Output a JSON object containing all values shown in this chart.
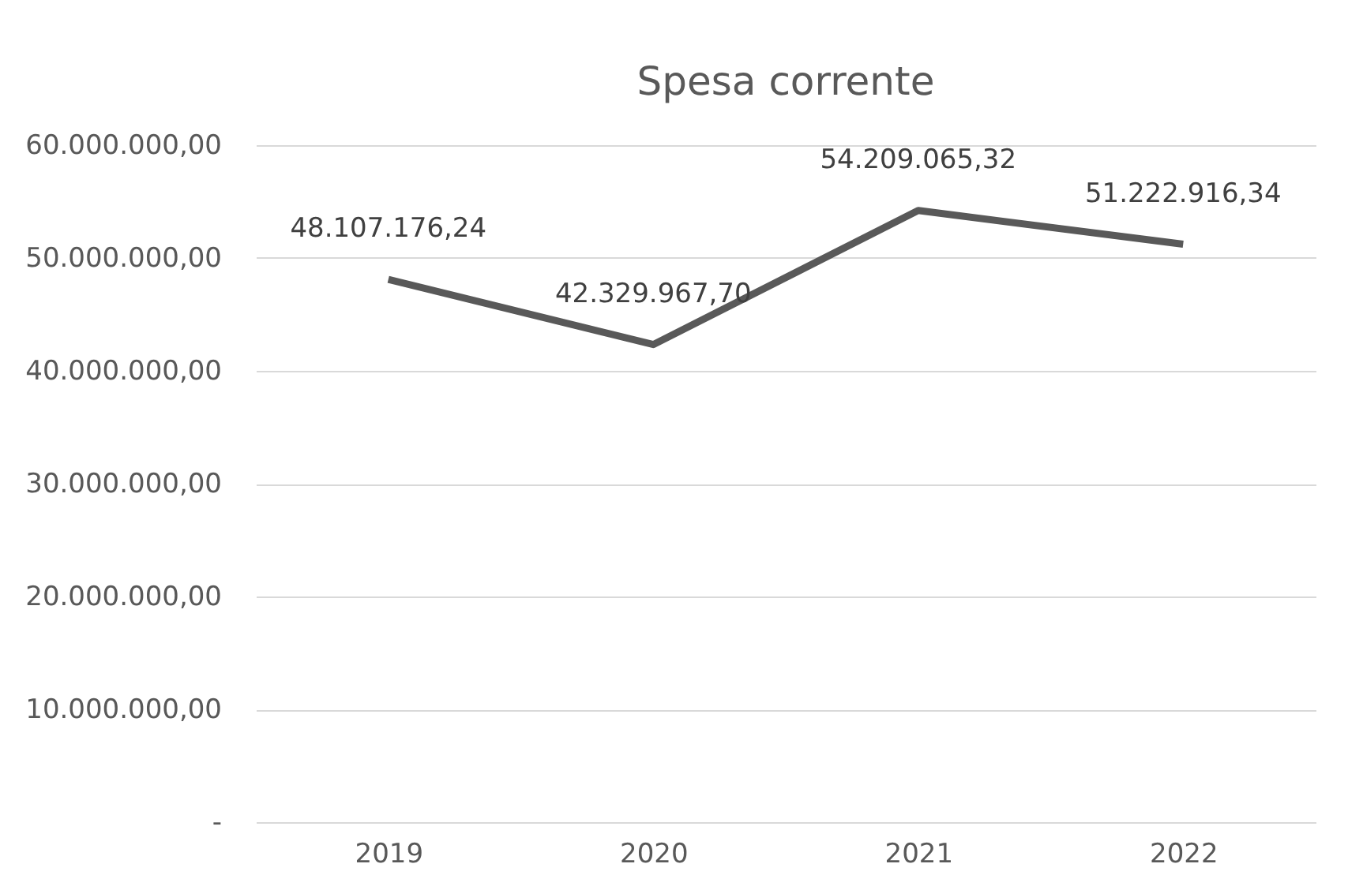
{
  "chart_data": {
    "type": "line",
    "title": "Spesa corrente",
    "categories": [
      "2019",
      "2020",
      "2021",
      "2022"
    ],
    "series": [
      {
        "color": "#595959",
        "values": [
          48107176.24,
          42329967.7,
          54209065.32,
          51222916.34
        ]
      }
    ],
    "value_labels": [
      "48.107.176,24",
      "42.329.967,70",
      "54.209.065,32",
      "51.222.916,34"
    ],
    "ylim": [
      0,
      60000000
    ],
    "yticks": [
      {
        "value": 0,
        "label": "-"
      },
      {
        "value": 10000000,
        "label": "10.000.000,00"
      },
      {
        "value": 20000000,
        "label": "20.000.000,00"
      },
      {
        "value": 30000000,
        "label": "30.000.000,00"
      },
      {
        "value": 40000000,
        "label": "40.000.000,00"
      },
      {
        "value": 50000000,
        "label": "50.000.000,00"
      },
      {
        "value": 60000000,
        "label": "60.000.000,00"
      }
    ],
    "grid": "y",
    "marker": "none",
    "line_style": "solid"
  }
}
